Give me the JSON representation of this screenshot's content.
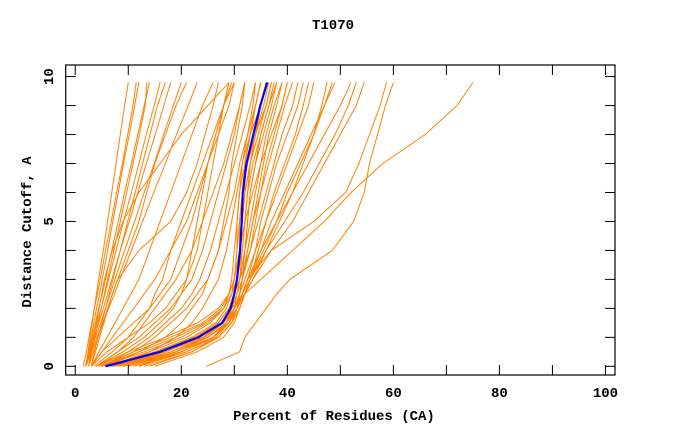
{
  "chart_data": {
    "type": "line",
    "title": "T1070",
    "xlabel": "Percent of Residues (CA)",
    "ylabel": "Distance Cutoff, A",
    "xlim": [
      -1.8,
      101.8
    ],
    "ylim": [
      -0.3,
      10.4
    ],
    "x_ticks": [
      0,
      10,
      20,
      30,
      40,
      50,
      60,
      70,
      80,
      90,
      100
    ],
    "x_tick_labels": [
      "0",
      "20",
      "40",
      "60",
      "80",
      "100"
    ],
    "x_tick_label_values": [
      0,
      20,
      40,
      60,
      80,
      100
    ],
    "y_ticks": [
      0,
      1,
      2,
      3,
      4,
      5,
      6,
      7,
      8,
      9,
      10
    ],
    "y_tick_labels": [
      "0",
      "5",
      "10"
    ],
    "y_tick_label_values": [
      0,
      5,
      10
    ],
    "grid": false,
    "colors": {
      "models": "#ff8000",
      "highlight": "#0000ff"
    },
    "y_levels": [
      0,
      0.5,
      1,
      1.5,
      2,
      2.5,
      3,
      4,
      5,
      6,
      7,
      8,
      9,
      9.8
    ],
    "highlight_series": [
      5.7,
      16,
      23.2,
      27.7,
      29.3,
      30,
      30.5,
      31.1,
      31.4,
      31.6,
      32.3,
      33.6,
      34.9,
      36.2
    ],
    "model_series": [
      [
        2,
        2.4,
        2.8,
        3.2,
        3.6,
        4.0,
        4.4,
        5.3,
        6.1,
        6.9,
        7.7,
        8.5,
        9.3,
        10
      ],
      [
        1.5,
        2.1,
        2.6,
        3.1,
        3.6,
        4.2,
        4.7,
        5.7,
        6.8,
        7.8,
        8.9,
        9.9,
        10.9,
        11.5
      ],
      [
        2,
        2.5,
        3,
        3.5,
        4,
        4.6,
        5.1,
        6.1,
        7.1,
        8.1,
        9.1,
        10.2,
        11.2,
        12
      ],
      [
        2.5,
        3.1,
        3.7,
        4.3,
        4.9,
        5.5,
        6.1,
        7.3,
        8.5,
        9.7,
        10.9,
        12.1,
        13.2,
        13.5
      ],
      [
        2,
        2.6,
        3.2,
        3.8,
        4.4,
        5.1,
        5.7,
        6.9,
        8.1,
        9.3,
        10.6,
        11.8,
        13,
        14
      ],
      [
        2,
        2.7,
        3.4,
        4.1,
        4.9,
        5.6,
        6.3,
        7.7,
        9.1,
        10.6,
        12,
        13.4,
        14.9,
        16
      ],
      [
        3,
        3.6,
        4.3,
        5,
        5.7,
        6.4,
        7.1,
        8.5,
        9.9,
        11.3,
        12.7,
        14.1,
        15.5,
        17
      ],
      [
        2,
        2.8,
        3.6,
        4.4,
        5.3,
        6.1,
        6.9,
        8.5,
        10.2,
        11.8,
        13.4,
        15.1,
        16.7,
        18
      ],
      [
        2,
        2.9,
        3.8,
        4.8,
        5.7,
        6.6,
        7.5,
        9.3,
        11.2,
        13,
        14.9,
        16.7,
        18.5,
        20
      ],
      [
        2.5,
        3.4,
        4.3,
        5.2,
        6.1,
        7,
        8,
        10,
        12,
        13.5,
        15,
        17,
        19,
        21
      ],
      [
        2,
        3.1,
        4.1,
        5.2,
        6.3,
        7.4,
        8.4,
        10.6,
        12.7,
        14.8,
        17,
        19.1,
        21.3,
        23
      ],
      [
        2.5,
        3,
        3.5,
        4,
        4.5,
        5,
        5.5,
        7,
        9,
        12,
        16,
        20,
        25,
        29
      ],
      [
        3,
        3.8,
        4.6,
        5.4,
        6.2,
        7,
        8,
        12,
        18,
        21,
        23,
        24.5,
        26,
        27
      ],
      [
        3,
        5,
        8,
        11,
        14,
        16,
        18,
        20,
        22,
        23.5,
        25,
        26.5,
        28,
        29
      ],
      [
        4,
        8,
        12,
        15,
        18,
        20,
        22,
        24,
        25.5,
        27,
        28.5,
        30,
        31,
        32
      ],
      [
        3,
        6,
        10,
        14,
        17,
        19,
        21,
        23,
        24,
        25,
        26,
        27,
        28,
        29
      ],
      [
        5,
        10,
        14,
        17,
        20,
        22,
        23.5,
        25.5,
        27,
        28.5,
        30,
        31.5,
        33,
        34
      ],
      [
        4,
        9,
        13,
        16,
        18.5,
        20,
        21,
        22,
        23,
        24,
        25,
        26.5,
        28,
        29.5
      ],
      [
        3,
        5,
        7,
        9,
        11,
        13,
        15,
        18,
        21,
        23,
        25,
        27,
        29,
        30
      ],
      [
        6,
        12,
        17,
        20,
        22,
        24,
        25,
        27,
        28.5,
        30,
        31,
        32.5,
        34,
        35
      ],
      [
        3.5,
        7,
        10,
        12,
        14,
        15,
        16.5,
        18,
        20,
        22,
        24,
        26,
        28,
        30
      ],
      [
        5,
        11,
        15,
        18,
        21,
        23,
        25,
        27,
        28,
        29,
        29.5,
        30.5,
        31.5,
        32
      ],
      [
        3,
        4.5,
        6,
        7.5,
        9,
        10.5,
        12,
        14,
        16,
        18,
        20,
        22,
        24,
        26
      ],
      [
        4,
        8,
        11,
        13,
        15,
        17,
        19,
        22,
        24,
        26,
        28,
        29.5,
        31,
        32
      ],
      [
        7,
        14,
        19,
        22,
        24,
        25.5,
        27,
        28.5,
        29.5,
        30.5,
        31.5,
        33,
        35,
        36
      ],
      [
        4,
        10,
        17,
        23,
        27,
        29,
        30,
        30.5,
        31,
        31.5,
        32,
        33,
        34,
        35
      ],
      [
        5,
        13,
        20,
        25,
        28,
        29.5,
        30,
        31,
        31.5,
        32,
        33,
        34.5,
        36,
        37
      ],
      [
        6,
        15,
        22,
        26.5,
        28.5,
        29.5,
        30,
        30.5,
        30.5,
        31,
        31.5,
        32.5,
        33.5,
        34
      ],
      [
        7,
        17,
        24,
        28,
        29.5,
        30.5,
        31,
        32,
        32.5,
        33,
        34,
        35.5,
        37,
        38
      ],
      [
        8,
        18,
        25,
        28.5,
        30,
        31,
        31.5,
        32.5,
        33.5,
        34.5,
        35.5,
        36.5,
        38,
        39
      ],
      [
        9,
        19,
        26,
        29,
        30.5,
        31,
        31.5,
        32,
        32.5,
        33,
        34,
        35,
        36.5,
        37.5
      ],
      [
        4.5,
        11,
        18,
        24,
        27.5,
        29,
        30,
        31,
        32,
        33.5,
        35,
        37,
        39,
        40
      ],
      [
        10,
        20,
        26.5,
        29,
        30,
        30.5,
        31,
        31.5,
        32,
        32.5,
        33,
        34,
        35,
        36
      ],
      [
        6,
        14,
        21,
        25.5,
        28,
        29,
        29.5,
        30,
        30.5,
        31,
        32,
        33,
        35,
        36
      ],
      [
        5,
        12,
        19,
        24.5,
        28,
        29.5,
        30.5,
        31.5,
        32,
        32.5,
        33.5,
        35,
        36.5,
        38
      ],
      [
        7.5,
        16,
        23,
        27,
        29,
        30,
        30.5,
        31,
        31.5,
        32,
        33,
        34,
        36,
        37
      ],
      [
        11,
        21,
        27,
        29.5,
        30.5,
        31,
        31.5,
        32.5,
        33.5,
        35,
        36.5,
        38,
        39.5,
        41
      ],
      [
        8,
        17,
        23.5,
        27,
        29,
        30,
        30.5,
        31,
        31,
        31.5,
        32.5,
        34,
        35.5,
        36.5
      ],
      [
        6.5,
        15,
        22.5,
        27,
        29,
        30,
        31,
        32,
        33,
        34,
        35,
        36,
        37.5,
        39
      ],
      [
        12,
        20,
        26,
        28.5,
        29.5,
        30,
        30.5,
        31,
        31.5,
        32,
        32,
        33,
        34,
        35
      ],
      [
        9,
        18,
        24.5,
        28,
        29.5,
        30.5,
        31.5,
        33,
        34,
        35,
        36,
        37.5,
        39,
        40
      ],
      [
        10,
        19,
        25,
        28.5,
        30,
        31,
        32,
        34,
        36,
        38,
        40,
        42,
        44,
        45
      ],
      [
        8,
        17,
        24,
        28,
        30,
        31.5,
        33,
        35.5,
        38,
        40,
        42.5,
        45,
        47,
        48.5
      ],
      [
        12,
        21,
        27,
        29.5,
        31,
        32,
        33,
        35,
        37,
        39.5,
        42,
        44.5,
        47,
        49
      ],
      [
        9,
        18,
        25,
        28.5,
        30.5,
        31.5,
        32.5,
        34,
        35,
        36.5,
        38,
        40,
        42,
        43
      ],
      [
        14,
        22,
        27,
        29.5,
        30.5,
        31.5,
        32.5,
        35,
        38,
        41,
        44,
        47,
        50,
        52
      ],
      [
        7,
        16,
        23,
        27,
        29,
        30,
        31,
        33,
        34.5,
        36,
        37.5,
        39,
        41,
        42
      ],
      [
        11,
        20,
        26,
        29,
        30.5,
        32,
        33.5,
        36,
        38.5,
        41,
        43,
        45,
        46.5,
        47.5
      ],
      [
        15,
        23,
        28,
        30,
        31,
        32,
        33,
        34.5,
        36,
        37.5,
        39.5,
        41.5,
        43,
        44
      ],
      [
        24.7,
        31,
        32,
        34,
        36,
        38,
        40.5,
        48.5,
        52.5,
        54.5,
        55.5,
        57,
        58.5,
        60
      ],
      [
        7,
        16,
        23,
        27.5,
        29.5,
        32,
        35,
        41,
        47,
        52,
        58,
        66,
        72,
        75
      ],
      [
        13,
        22,
        27,
        29.5,
        30.5,
        31.5,
        32.5,
        37,
        45,
        51,
        53.5,
        55.5,
        57.5,
        58.7
      ],
      [
        10,
        19,
        25,
        29,
        30.5,
        32,
        33.5,
        37,
        41,
        44,
        47,
        50,
        53,
        54.5
      ],
      [
        12,
        20,
        26,
        29,
        30.5,
        31.5,
        33,
        36,
        39.5,
        43,
        46,
        49,
        51.5,
        53
      ]
    ]
  }
}
